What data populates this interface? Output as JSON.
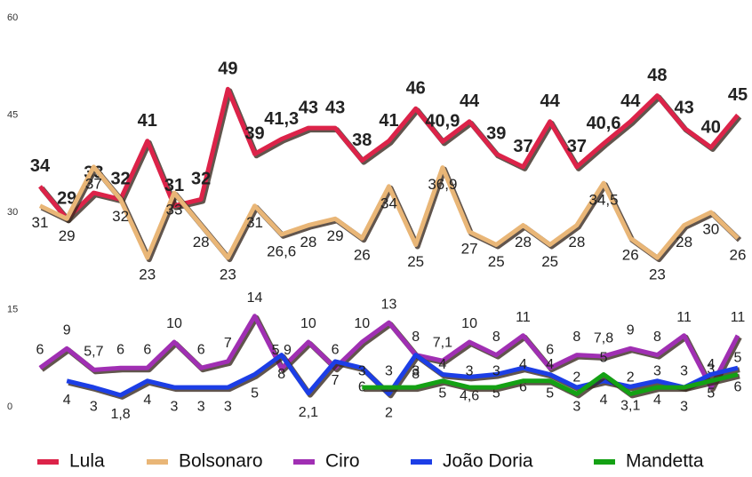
{
  "chart_data": {
    "type": "line",
    "ylim": [
      0,
      60
    ],
    "yticks": [
      0,
      15,
      30,
      45,
      60
    ],
    "grid": false,
    "legend": "bottom",
    "series": [
      {
        "name": "Lula",
        "color": "#dc2349",
        "values": [
          34,
          29,
          33,
          32,
          41,
          31,
          32,
          49,
          39,
          41.3,
          43,
          43,
          38,
          41,
          46,
          40.9,
          44,
          39,
          37,
          44,
          37,
          40.6,
          44,
          48,
          43,
          40,
          45
        ],
        "value_labels": [
          "34",
          "29",
          "33",
          "32",
          "41",
          "31",
          "32",
          "49",
          "39",
          "41,3",
          "43",
          "43",
          "38",
          "41",
          "46",
          "40,9",
          "44",
          "39",
          "37",
          "44",
          "37",
          "40,6",
          "44",
          "48",
          "43",
          "40",
          "45"
        ]
      },
      {
        "name": "Bolsonaro",
        "color": "#e9b677",
        "values": [
          31,
          29,
          37,
          32,
          23,
          33,
          28,
          23,
          31,
          26.6,
          28,
          29,
          26,
          34,
          25,
          36.9,
          27,
          25,
          28,
          25,
          28,
          34.5,
          26,
          23,
          28,
          30,
          26
        ],
        "value_labels": [
          "31",
          "29",
          "37",
          "32",
          "23",
          "33",
          "28",
          "23",
          "31",
          "26,6",
          "28",
          "29",
          "26",
          "34",
          "25",
          "36,9",
          "27",
          "25",
          "28",
          "25",
          "28",
          "34,5",
          "26",
          "23",
          "28",
          "30",
          "26"
        ]
      },
      {
        "name": "Ciro",
        "color": "#a02fb3",
        "values": [
          6,
          9,
          5.7,
          6,
          6,
          10,
          6,
          7,
          14,
          5.9,
          10,
          6,
          10,
          13,
          8,
          7.1,
          10,
          8,
          11,
          6,
          8,
          7.8,
          9,
          8,
          11,
          3,
          11
        ],
        "value_labels": [
          "6",
          "9",
          "5,7",
          "6",
          "6",
          "10",
          "6",
          "7",
          "14",
          "5,9",
          "10",
          "6",
          "10",
          "13",
          "8",
          "7,1",
          "10",
          "8",
          "11",
          "6",
          "8",
          "7,8",
          "9",
          "8",
          "11",
          "3",
          "11"
        ]
      },
      {
        "name": "João Doria",
        "color": "#1c3ee6",
        "values": [
          null,
          4,
          3,
          1.8,
          4,
          3,
          3,
          3,
          5,
          8,
          2.1,
          7,
          6,
          2,
          8,
          5,
          4.6,
          5,
          6,
          5,
          3,
          4,
          3.1,
          4,
          3,
          5,
          6
        ],
        "value_labels": [
          null,
          "4",
          "3",
          "1,8",
          "4",
          "3",
          "3",
          "3",
          "5",
          "8",
          "2,1",
          "7",
          "6",
          "2",
          "8",
          "5",
          "4,6",
          "5",
          "6",
          "5",
          "3",
          "4",
          "3,1",
          "4",
          "3",
          "5",
          "6"
        ]
      },
      {
        "name": "Mandetta",
        "color": "#14a114",
        "values": [
          null,
          null,
          null,
          null,
          null,
          null,
          null,
          null,
          null,
          null,
          null,
          null,
          3,
          3,
          3,
          4,
          3,
          3,
          4,
          4,
          2,
          5,
          2,
          3,
          3,
          4,
          5
        ]
      }
    ]
  }
}
